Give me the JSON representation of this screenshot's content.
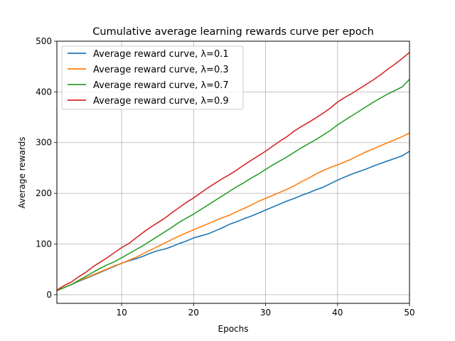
{
  "chart_data": {
    "type": "line",
    "title": "Cumulative average learning rewards curve per epoch",
    "xlabel": "Epochs",
    "ylabel": "Average rewards",
    "xlim": [
      1,
      50
    ],
    "ylim": [
      -17,
      500
    ],
    "x_ticks": [
      10,
      20,
      30,
      40,
      50
    ],
    "y_ticks": [
      0,
      100,
      200,
      300,
      400,
      500
    ],
    "grid": true,
    "legend_position": "upper-left",
    "x": [
      1,
      2,
      3,
      4,
      5,
      6,
      7,
      8,
      9,
      10,
      11,
      12,
      13,
      14,
      15,
      16,
      17,
      18,
      19,
      20,
      21,
      22,
      23,
      24,
      25,
      26,
      27,
      28,
      29,
      30,
      31,
      32,
      33,
      34,
      35,
      36,
      37,
      38,
      39,
      40,
      41,
      42,
      43,
      44,
      45,
      46,
      47,
      48,
      49,
      50
    ],
    "series": [
      {
        "name": "Average reward curve, λ=0.1",
        "color": "#1f77b4",
        "values": [
          8,
          14,
          20,
          26,
          32,
          38,
          44,
          50,
          56,
          62,
          67,
          71,
          76,
          82,
          87,
          90,
          95,
          101,
          106,
          112,
          116,
          120,
          126,
          132,
          139,
          144,
          150,
          155,
          161,
          167,
          173,
          179,
          185,
          190,
          196,
          201,
          207,
          212,
          219,
          226,
          232,
          238,
          243,
          248,
          254,
          259,
          264,
          269,
          274,
          283
        ]
      },
      {
        "name": "Average reward curve, λ=0.3",
        "color": "#ff7f0e",
        "values": [
          8,
          14,
          20,
          27,
          33,
          39,
          45,
          51,
          57,
          62,
          68,
          74,
          81,
          88,
          95,
          102,
          109,
          116,
          122,
          128,
          134,
          140,
          146,
          152,
          157,
          164,
          170,
          177,
          184,
          190,
          196,
          202,
          208,
          215,
          223,
          230,
          238,
          245,
          251,
          256,
          262,
          268,
          275,
          282,
          288,
          294,
          300,
          306,
          312,
          319
        ]
      },
      {
        "name": "Average reward curve, λ=0.7",
        "color": "#2ca02c",
        "values": [
          8,
          14,
          20,
          28,
          36,
          44,
          52,
          59,
          65,
          73,
          81,
          89,
          97,
          106,
          115,
          124,
          133,
          143,
          151,
          159,
          168,
          177,
          186,
          195,
          204,
          213,
          221,
          230,
          238,
          247,
          256,
          264,
          272,
          281,
          290,
          298,
          306,
          315,
          324,
          335,
          344,
          353,
          362,
          371,
          380,
          388,
          396,
          403,
          410,
          425
        ]
      },
      {
        "name": "Average reward curve, λ=0.9",
        "color": "#d62728",
        "values": [
          9,
          18,
          25,
          35,
          44,
          55,
          64,
          73,
          83,
          93,
          101,
          112,
          123,
          133,
          142,
          151,
          162,
          172,
          182,
          191,
          201,
          211,
          220,
          229,
          237,
          246,
          256,
          265,
          274,
          283,
          293,
          303,
          312,
          323,
          332,
          340,
          349,
          358,
          368,
          380,
          389,
          397,
          406,
          415,
          424,
          434,
          445,
          455,
          466,
          478
        ]
      }
    ]
  }
}
